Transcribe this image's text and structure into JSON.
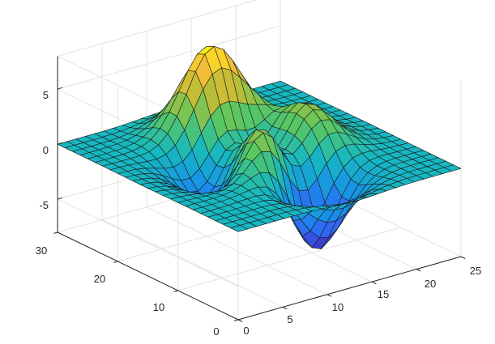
{
  "chart_data": {
    "type": "surface",
    "function": "peaks",
    "title": "",
    "xlabel": "",
    "ylabel": "",
    "zlabel": "",
    "grid": true,
    "colormap": "parula",
    "x": {
      "min": 0,
      "max": 25,
      "samples": 25,
      "ticks": [
        "0",
        "5",
        "10",
        "15",
        "20",
        "25"
      ],
      "tick_values": [
        0,
        5,
        10,
        15,
        20,
        25
      ]
    },
    "y": {
      "min": 0,
      "max": 30,
      "samples": 25,
      "ticks": [
        "0",
        "10",
        "20",
        "30"
      ],
      "tick_values": [
        0,
        10,
        20,
        30
      ]
    },
    "z": {
      "min": -8,
      "max": 8,
      "ticks": [
        "-5",
        "0",
        "5"
      ],
      "tick_values": [
        -5,
        0,
        5
      ]
    }
  }
}
